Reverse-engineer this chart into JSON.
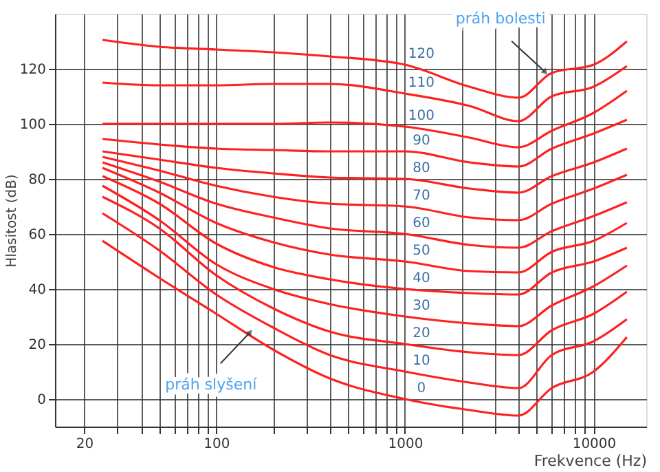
{
  "chart_data": {
    "type": "line",
    "xlabel": "Frekvence (Hz)",
    "ylabel": "Hlasitost (dB)",
    "x": [
      25,
      50,
      100,
      200,
      400,
      1000,
      2200,
      4000,
      6000,
      10000,
      15000
    ],
    "series": [
      {
        "name": "120",
        "color": "#ff2020",
        "values": [
          130.5,
          128,
          127,
          126,
          124.5,
          121.5,
          113.5,
          109.5,
          118.5,
          121.5,
          130
        ]
      },
      {
        "name": "110",
        "color": "#ff2020",
        "values": [
          115,
          114,
          114,
          114.5,
          114.5,
          111,
          106.5,
          101,
          110,
          113.5,
          121
        ]
      },
      {
        "name": "100",
        "color": "#ff2020",
        "values": [
          100,
          100,
          100,
          100,
          100.5,
          99,
          95,
          91.5,
          97.5,
          104,
          112
        ]
      },
      {
        "name": "90",
        "color": "#ff2020",
        "values": [
          94.5,
          92.5,
          91,
          90.5,
          90,
          90,
          86,
          84.5,
          91,
          96.5,
          101.5
        ]
      },
      {
        "name": "80",
        "color": "#ff2020",
        "values": [
          90,
          87,
          84,
          82,
          80.5,
          80,
          76.5,
          75,
          81,
          86,
          91
        ]
      },
      {
        "name": "70",
        "color": "#ff2020",
        "values": [
          88,
          83,
          77.5,
          73.5,
          71,
          70,
          66,
          65,
          71,
          76.5,
          81.5
        ]
      },
      {
        "name": "60",
        "color": "#ff2020",
        "values": [
          86,
          79,
          71,
          66,
          62,
          60,
          56,
          55,
          61,
          66.5,
          71.5
        ]
      },
      {
        "name": "50",
        "color": "#ff2020",
        "values": [
          84,
          75,
          64,
          57,
          52.5,
          50,
          46.5,
          46,
          53.5,
          57.5,
          64
        ]
      },
      {
        "name": "40",
        "color": "#ff2020",
        "values": [
          81,
          71,
          56.5,
          48,
          43.5,
          40,
          38.5,
          38,
          46,
          50,
          55
        ]
      },
      {
        "name": "30",
        "color": "#ff2020",
        "values": [
          77.5,
          65,
          49,
          40,
          34.5,
          30,
          27.5,
          26.5,
          34,
          41,
          48.5
        ]
      },
      {
        "name": "20",
        "color": "#ff2020",
        "values": [
          73.5,
          62,
          45,
          33,
          24.5,
          20,
          17,
          16,
          25,
          31,
          39
        ]
      },
      {
        "name": "10",
        "color": "#ff2020",
        "values": [
          67.5,
          54,
          38,
          26,
          16,
          10,
          6,
          4,
          16,
          21,
          29
        ]
      },
      {
        "name": "0",
        "color": "#ff2020",
        "values": [
          57.5,
          44,
          31,
          18,
          7.5,
          0,
          -4,
          -6,
          4,
          10,
          22.5
        ]
      }
    ],
    "annotations": [
      {
        "text": "práh bolesti",
        "x": 5500,
        "y": 119
      },
      {
        "text": "práh slyšení",
        "x": 150,
        "y": 24
      }
    ],
    "xlim": [
      14,
      19000
    ],
    "ylim": [
      -10,
      140
    ],
    "xticks": [
      20,
      {
        "value": 30,
        "label": null
      },
      {
        "value": 40,
        "label": null
      },
      {
        "value": 50,
        "label": null
      },
      {
        "value": 60,
        "label": null
      },
      {
        "value": 70,
        "label": null
      },
      {
        "value": 80,
        "label": null
      },
      {
        "value": 90,
        "label": null
      },
      100,
      {
        "value": 200,
        "label": null
      },
      {
        "value": 300,
        "label": null
      },
      {
        "value": 400,
        "label": null
      },
      {
        "value": 500,
        "label": null
      },
      {
        "value": 600,
        "label": null
      },
      {
        "value": 700,
        "label": null
      },
      {
        "value": 800,
        "label": null
      },
      {
        "value": 900,
        "label": null
      },
      1000,
      {
        "value": 2000,
        "label": null
      },
      {
        "value": 3000,
        "label": null
      },
      {
        "value": 4000,
        "label": null
      },
      {
        "value": 5000,
        "label": null
      },
      {
        "value": 6000,
        "label": null
      },
      {
        "value": 7000,
        "label": null
      },
      {
        "value": 8000,
        "label": null
      },
      {
        "value": 9000,
        "label": null
      },
      10000
    ],
    "yticks": [
      0,
      20,
      40,
      60,
      80,
      100,
      120
    ],
    "log": "x",
    "grid": true
  }
}
